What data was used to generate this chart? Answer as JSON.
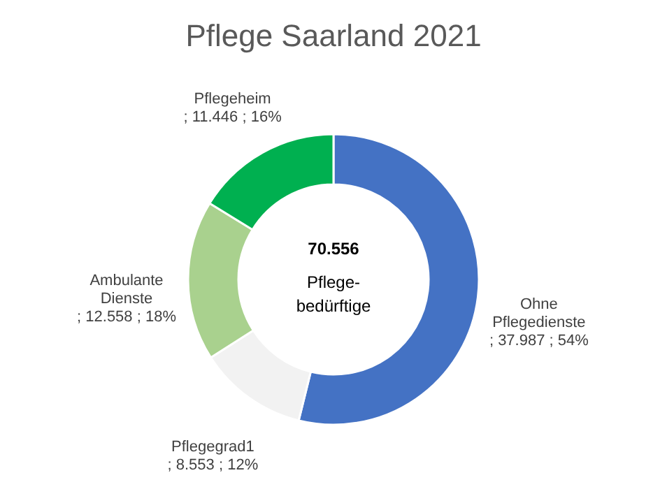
{
  "chart_data": {
    "type": "donut",
    "title": "Pflege Saarland 2021",
    "categories": [
      "Ohne Pflegedienste",
      "Pflegegrad1",
      "Ambulante Dienste",
      "Pflegeheim"
    ],
    "values": [
      37987,
      8553,
      12558,
      11446
    ],
    "value_labels": [
      "; 37.987 ; 54%",
      "; 8.553 ; 12%",
      "; 12.558 ; 18%",
      "; 11.446 ; 16%"
    ],
    "colors": [
      "#4472c4",
      "#f2f2f2",
      "#a9d18e",
      "#00b050"
    ],
    "annotations": [
      "70.556",
      "Pflege- bedürftige"
    ],
    "legend": false
  }
}
